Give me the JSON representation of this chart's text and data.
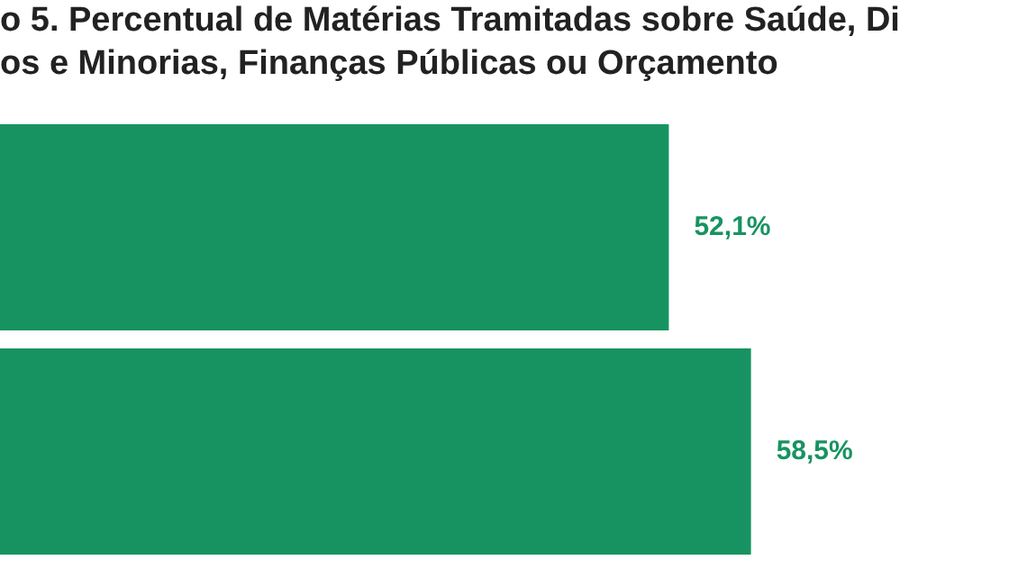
{
  "chart_data": {
    "type": "bar",
    "orientation": "horizontal",
    "title": "o 5. Percentual de Matérias Tramitadas sobre Saúde, Di\nos e Minorias, Finanças Públicas ou Orçamento",
    "categories": [
      null,
      null
    ],
    "values": [
      52.1,
      58.5
    ],
    "value_labels": [
      "52,1%",
      "58,5%"
    ],
    "color": "#179361",
    "legend": false
  }
}
